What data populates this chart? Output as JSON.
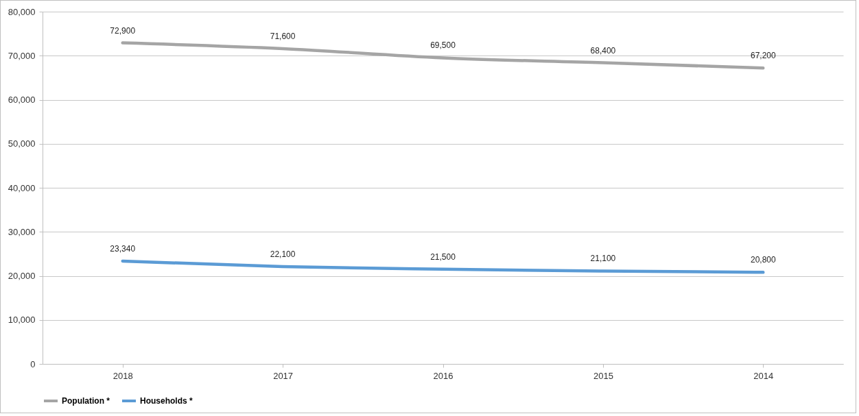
{
  "chart_data": {
    "type": "line",
    "categories": [
      "2018",
      "2017",
      "2016",
      "2015",
      "2014"
    ],
    "series": [
      {
        "name": "Population *",
        "color": "#a5a5a5",
        "values": [
          72900,
          71600,
          69500,
          68400,
          67200
        ],
        "value_labels": [
          "72,900",
          "71,600",
          "69,500",
          "68,400",
          "67,200"
        ]
      },
      {
        "name": "Households *",
        "color": "#5b9bd5",
        "values": [
          23340,
          22100,
          21500,
          21100,
          20800
        ],
        "value_labels": [
          "23,340",
          "22,100",
          "21,500",
          "21,100",
          "20,800"
        ]
      }
    ],
    "ylim": [
      0,
      80000
    ],
    "yticks": [
      0,
      {
        "value": 10000,
        "label": "10,000"
      },
      {
        "value": 20000,
        "label": "20,000"
      },
      {
        "value": 30000,
        "label": "30,000"
      },
      {
        "value": 40000,
        "label": "40,000"
      },
      {
        "value": 50000,
        "label": "50,000"
      },
      {
        "value": 60000,
        "label": "60,000"
      },
      {
        "value": 70000,
        "label": "70,000"
      },
      {
        "value": 80000,
        "label": "80,000"
      }
    ],
    "grid": "y",
    "legend": "bottom"
  }
}
